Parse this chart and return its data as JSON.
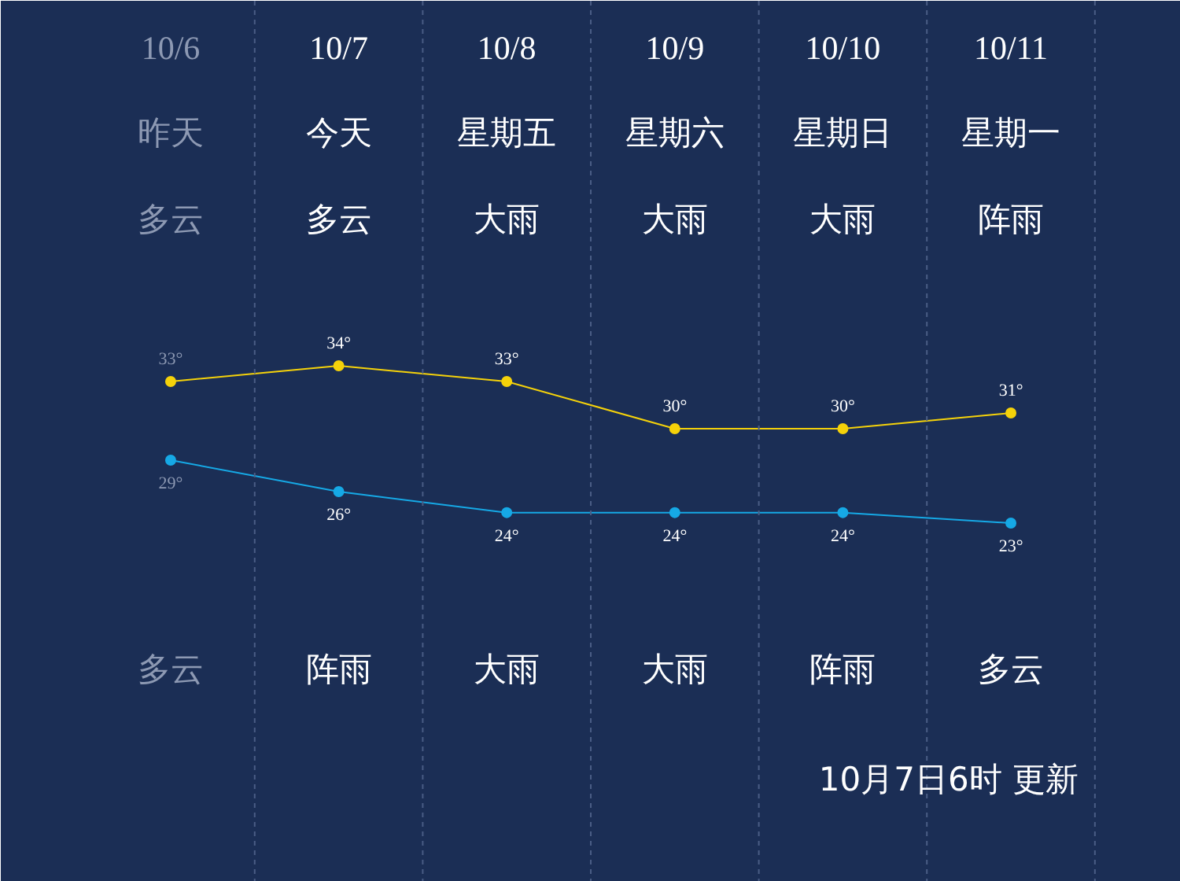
{
  "chart_data": {
    "type": "line",
    "categories": [
      "10/6",
      "10/7",
      "10/8",
      "10/9",
      "10/10",
      "10/11"
    ],
    "annotations": [
      "昨天",
      "今天",
      "星期五",
      "星期六",
      "星期日",
      "星期一",
      "多云",
      "多云",
      "大雨",
      "大雨",
      "大雨",
      "阵雨",
      "多云",
      "阵雨",
      "大雨",
      "大雨",
      "阵雨",
      "多云",
      "10月7日6时 更新"
    ],
    "series": [
      {
        "color": "#f5d20a",
        "values": [
          33,
          34,
          33,
          30,
          30,
          31
        ],
        "value_labels": [
          "33°",
          "34°",
          "33°",
          "30°",
          "30°",
          "31°"
        ]
      },
      {
        "color": "#16a9e6",
        "values": [
          29,
          26,
          24,
          24,
          24,
          23
        ],
        "value_labels": [
          "29°",
          "26°",
          "24°",
          "24°",
          "24°",
          "23°"
        ],
        "axis": "y2"
      }
    ],
    "ylim": [
      1.2,
      57.2
    ],
    "y2lim": [
      -11.2,
      72.8
    ],
    "grid": "x",
    "marker": "circle",
    "line_style": "solid",
    "tick_labels": "x"
  }
}
